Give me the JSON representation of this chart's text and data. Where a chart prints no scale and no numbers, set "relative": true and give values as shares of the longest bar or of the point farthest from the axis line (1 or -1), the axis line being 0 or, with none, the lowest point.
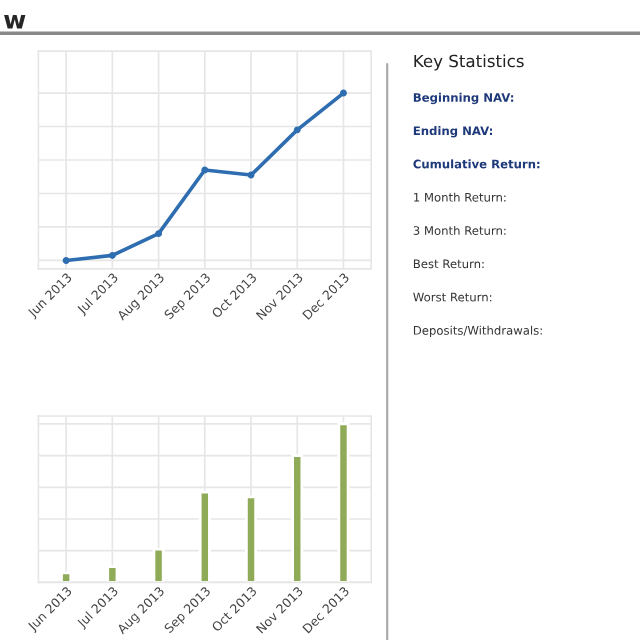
{
  "chart_data": [
    {
      "type": "line",
      "title": "w",
      "categories": [
        "Jun 2013",
        "Jul 2013",
        "Aug 2013",
        "Sep 2013",
        "Oct 2013",
        "Nov 2013",
        "Dec 2013"
      ],
      "relative": true,
      "grid": true,
      "marker": "circle",
      "line_style": "solid",
      "series": [
        {
          "color": "#2e6db0",
          "values": [
            0,
            0.03,
            0.16,
            0.54,
            0.51,
            0.78,
            1
          ]
        }
      ]
    },
    {
      "type": "bar",
      "categories": [
        "Jun 2013",
        "Jul 2013",
        "Aug 2013",
        "Sep 2013",
        "Oct 2013",
        "Nov 2013",
        "Dec 2013"
      ],
      "relative": true,
      "grid": true,
      "series": [
        {
          "color": "#8fab58",
          "values": [
            0.06,
            0.1,
            0.21,
            0.57,
            0.54,
            0.8,
            1
          ]
        }
      ]
    },
    {
      "type": "other",
      "title": "Key Statistics",
      "annotations": [
        "Beginning NAV:",
        "Ending NAV:",
        "Cumulative Return:",
        "1 Month Return:",
        "3 Month Return:",
        "Best Return:",
        "Worst Return:",
        "Deposits/Withdrawals:"
      ]
    }
  ]
}
